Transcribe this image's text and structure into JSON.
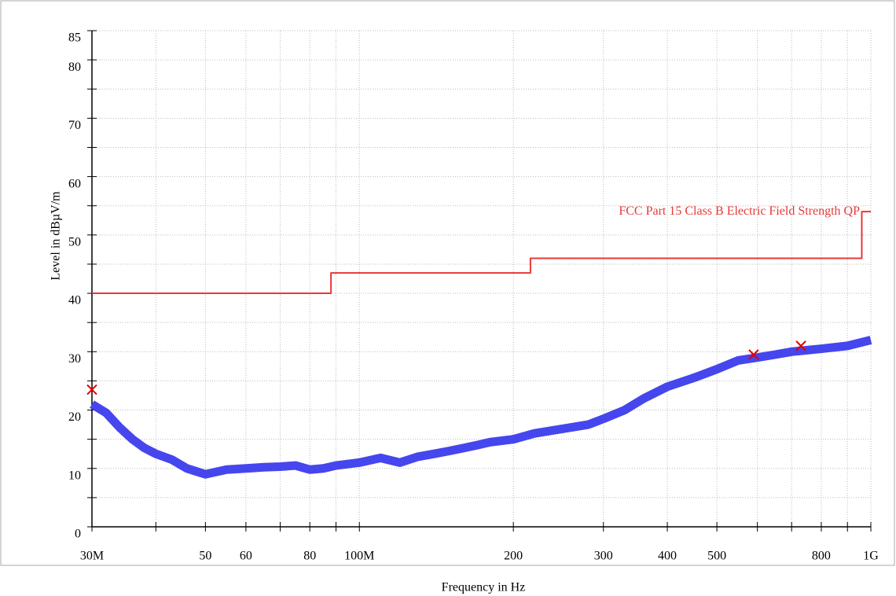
{
  "chart_data": {
    "type": "line",
    "xlabel": "Frequency in Hz",
    "ylabel": "Level in dBµV/m",
    "log_x": true,
    "grid": true,
    "xlim": [
      30000000,
      1000000000
    ],
    "xticks": [
      {
        "value": 30000000,
        "label": "30M"
      },
      {
        "value": 50000000,
        "label": "50"
      },
      {
        "value": 60000000,
        "label": "60"
      },
      {
        "value": 80000000,
        "label": "80"
      },
      {
        "value": 100000000,
        "label": "100M"
      },
      {
        "value": 200000000,
        "label": "200"
      },
      {
        "value": 300000000,
        "label": "300"
      },
      {
        "value": 400000000,
        "label": "400"
      },
      {
        "value": 500000000,
        "label": "500"
      },
      {
        "value": 800000000,
        "label": "800"
      },
      {
        "value": 1000000000,
        "label": "1G"
      }
    ],
    "xminor_ticks": [
      40000000,
      70000000,
      90000000,
      600000000,
      700000000,
      900000000
    ],
    "ylim": [
      0,
      85
    ],
    "yticks": [
      0,
      10,
      20,
      30,
      40,
      50,
      60,
      70,
      80,
      85
    ],
    "yminor_ticks": [
      5,
      15,
      25,
      35,
      45,
      55,
      65,
      75
    ],
    "series": [
      {
        "color": "#4646ee",
        "x": [
          30000000,
          32000000,
          34000000,
          36000000,
          38000000,
          40000000,
          43000000,
          46000000,
          50000000,
          55000000,
          60000000,
          65000000,
          70000000,
          75000000,
          80000000,
          85000000,
          90000000,
          100000000,
          110000000,
          120000000,
          130000000,
          140000000,
          150000000,
          160000000,
          170000000,
          180000000,
          200000000,
          220000000,
          250000000,
          280000000,
          300000000,
          330000000,
          360000000,
          400000000,
          450000000,
          500000000,
          550000000,
          600000000,
          650000000,
          700000000,
          800000000,
          900000000,
          1000000000
        ],
        "values": [
          21,
          19.5,
          17,
          15,
          13.5,
          12.5,
          11.5,
          10,
          9,
          9.8,
          10,
          10.2,
          10.3,
          10.5,
          9.8,
          10,
          10.5,
          11,
          11.8,
          11,
          12,
          12.5,
          13,
          13.5,
          14,
          14.5,
          15,
          16,
          16.8,
          17.5,
          18.5,
          20,
          22,
          24,
          25.5,
          27,
          28.5,
          29,
          29.5,
          30,
          30.5,
          31,
          32
        ]
      },
      {
        "name": "FCC Part 15 Class B Electric Field Strength QP",
        "color": "#e83838",
        "step": true,
        "x": [
          30000000,
          88000000,
          88000000,
          216000000,
          216000000,
          960000000,
          960000000,
          1000000000
        ],
        "values": [
          40,
          40,
          43.5,
          43.5,
          46,
          46,
          54,
          54
        ]
      }
    ],
    "markers": {
      "color": "#e00000",
      "x": [
        30000000,
        590000000,
        730000000
      ],
      "values": [
        23.5,
        29.5,
        31
      ]
    }
  }
}
